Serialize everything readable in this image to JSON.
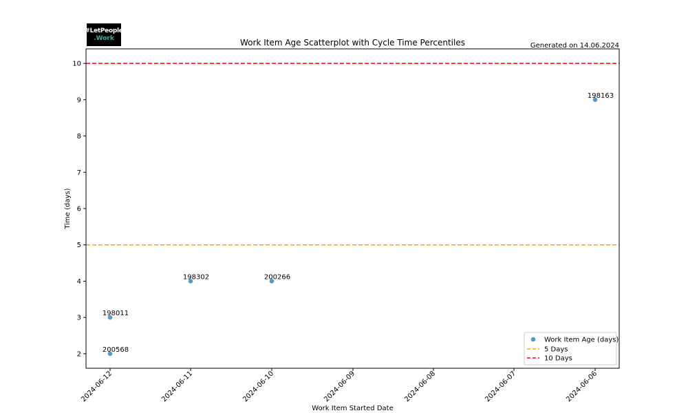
{
  "logo": {
    "line1": "#LetPeople",
    "line2": ".Work"
  },
  "generated_note": "Generated on 14.06.2024",
  "chart_data": {
    "type": "scatter",
    "title": "Work Item Age Scatterplot with Cycle Time Percentiles",
    "xlabel": "Work Item Started Date",
    "ylabel": "Time (days)",
    "x_axis_reversed": true,
    "x_ticks": [
      "2024-06-12",
      "2024-06-11",
      "2024-06-10",
      "2024-06-09",
      "2024-06-08",
      "2024-06-07",
      "2024-06-06"
    ],
    "y_ticks": [
      2,
      3,
      4,
      5,
      6,
      7,
      8,
      9,
      10
    ],
    "ylim": [
      1.6,
      10.4
    ],
    "grid": false,
    "legend_position": "bottom-right",
    "series": [
      {
        "name": "Work Item Age (days)",
        "color": "#1f77b4",
        "points": [
          {
            "x": "2024-06-12",
            "y": 2,
            "label": "200568"
          },
          {
            "x": "2024-06-12",
            "y": 3,
            "label": "198011"
          },
          {
            "x": "2024-06-11",
            "y": 4,
            "label": "198302"
          },
          {
            "x": "2024-06-10",
            "y": 4,
            "label": "200266"
          },
          {
            "x": "2024-06-06",
            "y": 9,
            "label": "198163"
          }
        ]
      }
    ],
    "reference_lines": [
      {
        "name": "5 Days",
        "y": 5,
        "color": "#ffa500"
      },
      {
        "name": "10 Days",
        "y": 10,
        "color": "#ff0000"
      }
    ]
  }
}
